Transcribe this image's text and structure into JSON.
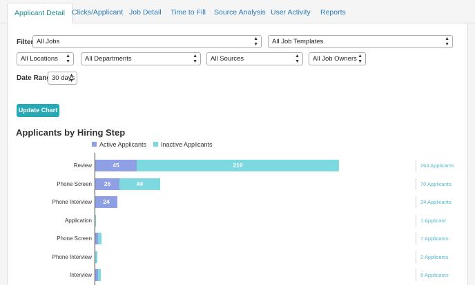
{
  "tabs": [
    {
      "label": "Applicant Detail",
      "active": true
    },
    {
      "label": "Clicks/Applicant"
    },
    {
      "label": "Job Detail"
    },
    {
      "label": "Time to Fill"
    },
    {
      "label": "Source Analysis"
    },
    {
      "label": "User Activity"
    },
    {
      "label": "Reports"
    }
  ],
  "filters": {
    "filter_label": "Filter:",
    "jobs": "All Jobs",
    "job_templates": "All Job Templates",
    "locations": "All Locations",
    "departments": "All Departments",
    "sources": "All Sources",
    "job_owners": "All Job Owners",
    "date_range_label": "Date Range:",
    "date_range": "30 days"
  },
  "update_button": "Update Chart",
  "colors": {
    "active": "#8e9fe3",
    "inactive": "#7dd8e0",
    "accent": "#26a9b4"
  },
  "chart_data": {
    "type": "bar",
    "orientation": "horizontal",
    "stacked": true,
    "title": "Applicants by Hiring Step",
    "legend": "top",
    "categories": [
      "Review",
      "Phone Screen",
      "Phone Interview",
      "Application",
      "Phone Screen",
      "Phone Interview",
      "Interview"
    ],
    "series": [
      {
        "name": "Active Applicants",
        "values": [
          45,
          26,
          24,
          0,
          3,
          0,
          3
        ],
        "labels": [
          "45",
          "26",
          "24",
          "",
          "",
          "",
          ""
        ]
      },
      {
        "name": "Inactive Applicants",
        "values": [
          219,
          44,
          0,
          1,
          4,
          2,
          3
        ],
        "labels": [
          "219",
          "44",
          "",
          "",
          "",
          "",
          ""
        ]
      }
    ],
    "totals": [
      "264 Applicants",
      "70 Applicants",
      "24 Applicants",
      "1 Applicant",
      "7 Applicants",
      "2 Applicants",
      "6 Applicants"
    ],
    "xlim": [
      0,
      264
    ]
  }
}
